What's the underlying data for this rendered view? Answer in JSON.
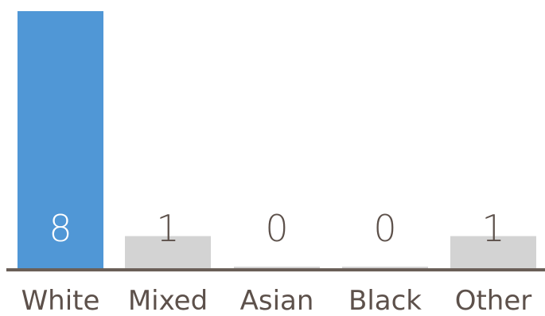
{
  "chart_data": {
    "type": "bar",
    "categories": [
      "White",
      "Mixed",
      "Asian",
      "Black",
      "Other"
    ],
    "values": [
      8,
      1,
      0,
      0,
      1
    ],
    "value_labels": [
      "8",
      "1",
      "0",
      "0",
      "1"
    ],
    "title": "",
    "xlabel": "",
    "ylabel": "",
    "ylim": [
      0,
      8
    ],
    "grid": false,
    "highlight_index": 0,
    "colors": {
      "highlight_bar": "#5097d6",
      "other_bar": "#d3d3d3",
      "axis": "#6a5f58",
      "highlight_label": "#ffffff",
      "other_label": "#5d514b",
      "category_label": "#5d514b"
    }
  }
}
